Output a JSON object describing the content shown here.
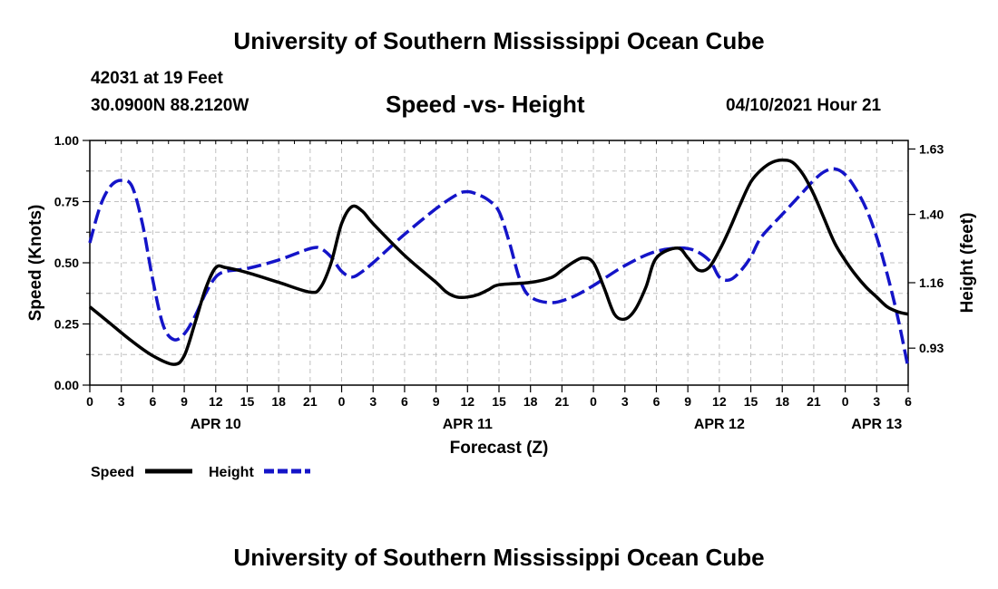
{
  "header": {
    "title": "University of Southern Mississippi Ocean Cube",
    "station": "42031 at 19 Feet",
    "coords": "30.0900N  88.2120W",
    "subtitle": "Speed -vs- Height",
    "datestamp": "04/10/2021 Hour 21"
  },
  "footer": {
    "title": "University of Southern Mississippi Ocean Cube"
  },
  "colors": {
    "speed": "#000000",
    "height": "#1414c8",
    "grid": "#c0c0c0"
  },
  "chart_data": {
    "type": "line",
    "title": "Speed -vs- Height",
    "xlabel": "Forecast (Z)",
    "ylabel": "Speed (Knots)",
    "y2label": "Height (feet)",
    "x_unit": "hours from APR 10 00Z",
    "xlim": [
      0,
      78
    ],
    "ylim": [
      0,
      1.0
    ],
    "y2lim": [
      0.8,
      1.66
    ],
    "x_ticks": [
      0,
      3,
      6,
      9,
      12,
      15,
      18,
      21,
      24,
      27,
      30,
      33,
      36,
      39,
      42,
      45,
      48,
      51,
      54,
      57,
      60,
      63,
      66,
      69,
      72,
      75,
      78
    ],
    "x_tick_labels": [
      "0",
      "3",
      "6",
      "9",
      "12",
      "15",
      "18",
      "21",
      "0",
      "3",
      "6",
      "9",
      "12",
      "15",
      "18",
      "21",
      "0",
      "3",
      "6",
      "9",
      "12",
      "15",
      "18",
      "21",
      "0",
      "3",
      "6"
    ],
    "y_ticks": [
      0.0,
      0.25,
      0.5,
      0.75,
      1.0
    ],
    "y_tick_labels": [
      "0.00",
      "0.25",
      "0.50",
      "0.75",
      "1.00"
    ],
    "y2_ticks": [
      0.93,
      1.16,
      1.4,
      1.63
    ],
    "y2_tick_labels": [
      "0.93",
      "1.16",
      "1.40",
      "1.63"
    ],
    "day_labels": [
      {
        "x": 12,
        "label": "APR 10"
      },
      {
        "x": 36,
        "label": "APR 11"
      },
      {
        "x": 60,
        "label": "APR 12"
      },
      {
        "x": 75,
        "label": "APR 13"
      }
    ],
    "grid": true,
    "series": [
      {
        "name": "Speed",
        "axis": "left",
        "style": "solid",
        "x": [
          0,
          2,
          4,
          6,
          8,
          9,
          10,
          11,
          12,
          13,
          15,
          18,
          21,
          22,
          23,
          24,
          25,
          26,
          27,
          30,
          33,
          34,
          35,
          36,
          37,
          38,
          39,
          42,
          44,
          45,
          46,
          47,
          48,
          49,
          50,
          51,
          52,
          53,
          54,
          56,
          57,
          58,
          59,
          60,
          61,
          62,
          63,
          64,
          65,
          66,
          67,
          68,
          69,
          70,
          71,
          72,
          73,
          74,
          75,
          76,
          77,
          78
        ],
        "values": [
          0.32,
          0.25,
          0.18,
          0.12,
          0.085,
          0.12,
          0.25,
          0.39,
          0.48,
          0.48,
          0.46,
          0.42,
          0.38,
          0.4,
          0.5,
          0.66,
          0.73,
          0.71,
          0.66,
          0.53,
          0.42,
          0.38,
          0.36,
          0.36,
          0.37,
          0.39,
          0.41,
          0.42,
          0.44,
          0.47,
          0.5,
          0.52,
          0.5,
          0.4,
          0.29,
          0.27,
          0.31,
          0.4,
          0.52,
          0.56,
          0.52,
          0.47,
          0.48,
          0.55,
          0.64,
          0.74,
          0.83,
          0.88,
          0.91,
          0.92,
          0.91,
          0.86,
          0.78,
          0.68,
          0.58,
          0.51,
          0.45,
          0.4,
          0.36,
          0.32,
          0.3,
          0.29
        ]
      },
      {
        "name": "Height",
        "axis": "right",
        "style": "dashed",
        "x": [
          0,
          1,
          2,
          3,
          4,
          5,
          6,
          7,
          8,
          9,
          10,
          11,
          12,
          13,
          15,
          18,
          21,
          22,
          23,
          24,
          25,
          26,
          27,
          30,
          33,
          35,
          36,
          37,
          38,
          39,
          40,
          41,
          42,
          44,
          46,
          48,
          51,
          54,
          57,
          59,
          60,
          61,
          62,
          63,
          64,
          66,
          68,
          69,
          70,
          71,
          72,
          73,
          74,
          75,
          76,
          77,
          78
        ],
        "values": [
          1.3,
          1.43,
          1.5,
          1.52,
          1.5,
          1.37,
          1.17,
          1.01,
          0.96,
          0.98,
          1.04,
          1.12,
          1.18,
          1.2,
          1.21,
          1.24,
          1.28,
          1.28,
          1.25,
          1.2,
          1.18,
          1.2,
          1.23,
          1.33,
          1.42,
          1.47,
          1.48,
          1.47,
          1.45,
          1.41,
          1.3,
          1.17,
          1.11,
          1.09,
          1.11,
          1.15,
          1.22,
          1.27,
          1.28,
          1.24,
          1.18,
          1.17,
          1.2,
          1.25,
          1.32,
          1.4,
          1.48,
          1.52,
          1.55,
          1.56,
          1.54,
          1.49,
          1.42,
          1.32,
          1.19,
          1.04,
          0.86
        ]
      }
    ]
  }
}
